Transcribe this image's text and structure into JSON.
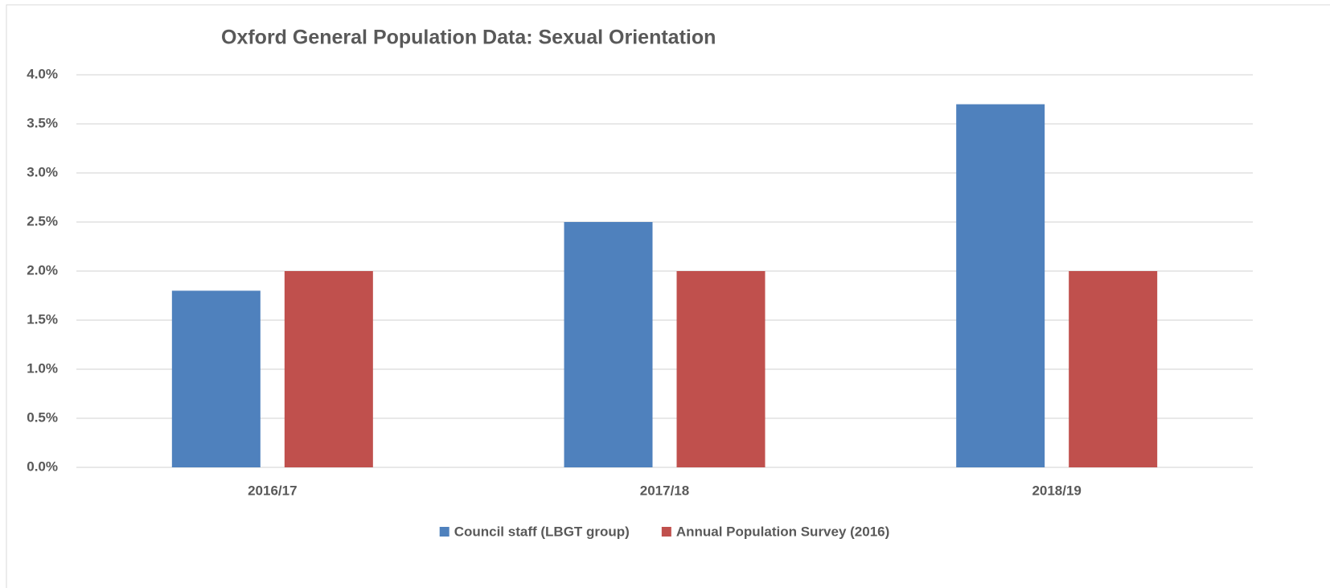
{
  "chart_data": {
    "type": "bar",
    "title": "Oxford General Population Data: Sexual Orientation",
    "categories": [
      "2016/17",
      "2017/18",
      "2018/19"
    ],
    "series": [
      {
        "name": "Council staff (LBGT group)",
        "color": "#4f81bd",
        "values": [
          1.8,
          2.5,
          3.7
        ]
      },
      {
        "name": "Annual Population Survey (2016)",
        "color": "#c0504d",
        "values": [
          2.0,
          2.0,
          2.0
        ]
      }
    ],
    "ylim": [
      0,
      4
    ],
    "yticks": [
      {
        "value": 0,
        "label": "0.0%"
      },
      {
        "value": 0.5,
        "label": "0.5%"
      },
      {
        "value": 1,
        "label": "1.0%"
      },
      {
        "value": 1.5,
        "label": "1.5%"
      },
      {
        "value": 2,
        "label": "2.0%"
      },
      {
        "value": 2.5,
        "label": "2.5%"
      },
      {
        "value": 3,
        "label": "3.0%"
      },
      {
        "value": 3.5,
        "label": "3.5%"
      },
      {
        "value": 4,
        "label": "4.0%"
      }
    ],
    "grid": true,
    "legend": "bottom"
  }
}
